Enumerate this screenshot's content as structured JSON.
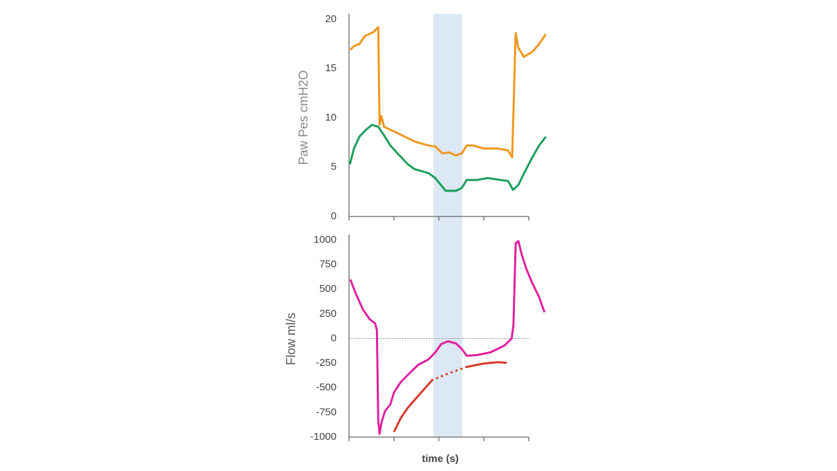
{
  "chart_data": [
    {
      "type": "line",
      "ylabel": "Paw  Pes cmH2O",
      "xlim": [
        0,
        4
      ],
      "xticks": [
        0,
        1,
        2,
        3,
        4
      ],
      "ylim": [
        0,
        20
      ],
      "yticks": [
        0,
        5,
        10,
        15,
        20
      ],
      "highlight": [
        1.88,
        2.52
      ],
      "highlight_color": "#dce8f3",
      "series": [
        {
          "color": "#f0961e",
          "x": [
            0.03,
            0.11,
            0.23,
            0.35,
            0.54,
            0.65,
            0.68,
            0.72,
            0.78,
            0.92,
            1.15,
            1.46,
            1.77,
            1.92,
            2.08,
            2.23,
            2.38,
            2.51,
            2.62,
            2.77,
            3.0,
            3.31,
            3.54,
            3.63,
            3.71,
            3.77,
            3.89,
            4.08,
            4.23,
            4.38
          ],
          "values": [
            16.9,
            17.3,
            17.5,
            18.3,
            18.7,
            19.2,
            9.3,
            10.2,
            9.1,
            8.8,
            8.3,
            7.6,
            7.2,
            7.1,
            6.4,
            6.5,
            6.2,
            6.4,
            7.2,
            7.2,
            6.9,
            6.9,
            6.7,
            6.0,
            18.6,
            17.1,
            16.2,
            16.7,
            17.5,
            18.5
          ]
        },
        {
          "color": "#1a9e5a",
          "x": [
            0.02,
            0.11,
            0.23,
            0.38,
            0.51,
            0.65,
            0.77,
            0.92,
            1.08,
            1.31,
            1.46,
            1.77,
            1.92,
            2.08,
            2.15,
            2.38,
            2.51,
            2.62,
            2.85,
            3.08,
            3.38,
            3.54,
            3.65,
            3.77,
            3.92,
            4.08,
            4.23,
            4.38
          ],
          "values": [
            5.3,
            6.9,
            8.1,
            8.8,
            9.3,
            9.1,
            8.3,
            7.2,
            6.4,
            5.3,
            4.8,
            4.4,
            3.9,
            3.0,
            2.6,
            2.6,
            2.9,
            3.7,
            3.7,
            3.9,
            3.7,
            3.6,
            2.7,
            3.2,
            4.6,
            6.0,
            7.2,
            8.1
          ]
        }
      ]
    },
    {
      "type": "line",
      "ylabel": "Flow ml/s",
      "xlabel": "time (s)",
      "xlim": [
        0,
        4
      ],
      "xticks": [
        0,
        1,
        2,
        3,
        4
      ],
      "ylim": [
        -1000,
        1000
      ],
      "yticks": [
        -1000,
        -750,
        -500,
        -250,
        0,
        250,
        500,
        750,
        1000
      ],
      "zero_line": true,
      "highlight": [
        1.88,
        2.52
      ],
      "highlight_color": "#dce8f3",
      "series": [
        {
          "color": "#e020a0",
          "x": [
            0.03,
            0.15,
            0.31,
            0.46,
            0.58,
            0.62,
            0.65,
            0.68,
            0.72,
            0.8,
            0.92,
            1.0,
            1.15,
            1.38,
            1.54,
            1.77,
            1.92,
            2.05,
            2.2,
            2.38,
            2.51,
            2.62,
            2.85,
            3.15,
            3.46,
            3.62,
            3.66,
            3.71,
            3.77,
            3.85,
            3.95,
            4.08,
            4.23,
            4.35
          ],
          "values": [
            600,
            456,
            295,
            196,
            154,
            84,
            -842,
            -968,
            -856,
            -737,
            -667,
            -547,
            -442,
            -337,
            -267,
            -211,
            -140,
            -56,
            -28,
            -49,
            -105,
            -175,
            -168,
            -140,
            -70,
            0,
            140,
            968,
            989,
            842,
            702,
            561,
            421,
            267
          ]
        },
        {
          "color": "#d63a2a",
          "x": [
            1.0,
            1.15,
            1.31,
            1.54,
            1.85
          ],
          "values": [
            -947,
            -807,
            -702,
            -582,
            -421
          ]
        },
        {
          "color": "#d63a2a",
          "dash": true,
          "x": [
            1.85,
            2.23,
            2.62
          ],
          "values": [
            -421,
            -351,
            -288
          ]
        },
        {
          "color": "#d63a2a",
          "x": [
            2.62,
            3.0,
            3.31,
            3.51
          ],
          "values": [
            -288,
            -253,
            -239,
            -246
          ]
        }
      ]
    }
  ]
}
